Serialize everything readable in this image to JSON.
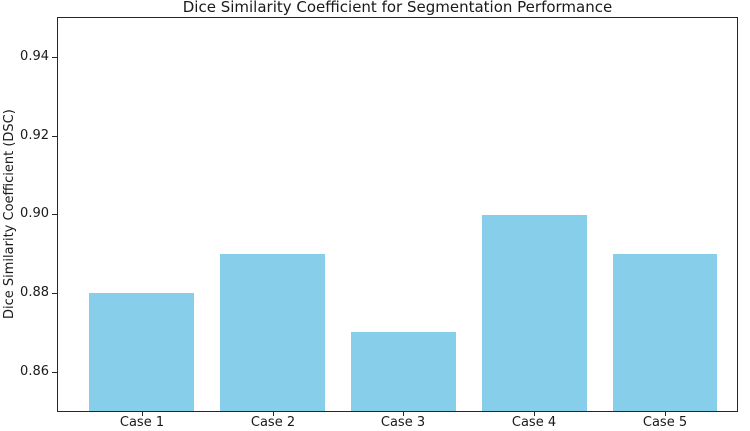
{
  "chart_data": {
    "type": "bar",
    "title": "Dice Similarity Coefficient for Segmentation Performance",
    "xlabel": "",
    "ylabel": "Dice Similarity Coefficient (DSC)",
    "categories": [
      "Case 1",
      "Case 2",
      "Case 3",
      "Case 4",
      "Case 5"
    ],
    "values": [
      0.88,
      0.89,
      0.87,
      0.9,
      0.89
    ],
    "ylim": [
      0.85,
      0.95
    ],
    "yticks": [
      0.86,
      0.88,
      0.9,
      0.92,
      0.94
    ],
    "ytick_labels": [
      "0.86",
      "0.88",
      "0.90",
      "0.92",
      "0.94"
    ],
    "xlim": [
      -0.64,
      4.55
    ],
    "bar_width": 0.8,
    "grid": false,
    "legend": "none",
    "colors": {
      "bar": "#87CEEB",
      "axis": "#262626",
      "text": "#1a1a1a",
      "background": "#ffffff"
    }
  }
}
